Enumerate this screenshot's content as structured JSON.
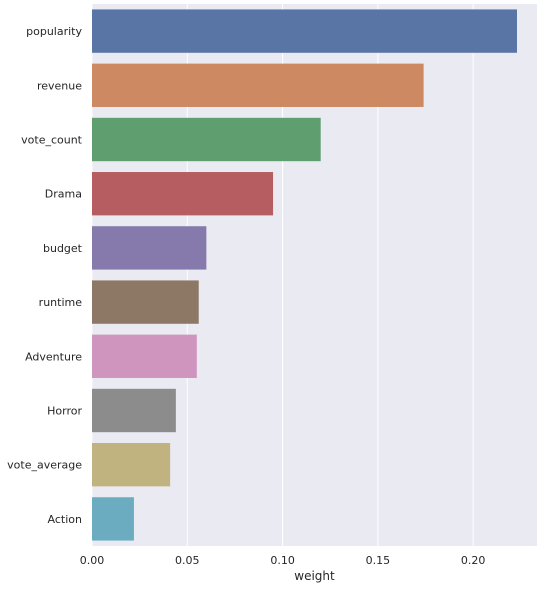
{
  "chart_data": {
    "type": "bar",
    "orientation": "horizontal",
    "categories": [
      "popularity",
      "revenue",
      "vote_count",
      "Drama",
      "budget",
      "runtime",
      "Adventure",
      "Horror",
      "vote_average",
      "Action"
    ],
    "values": [
      0.223,
      0.174,
      0.12,
      0.095,
      0.06,
      0.056,
      0.055,
      0.044,
      0.041,
      0.022
    ],
    "colors": [
      "#5875a6",
      "#cc8962",
      "#5f9e6e",
      "#b55d60",
      "#857aab",
      "#8d7866",
      "#d095bf",
      "#8c8c8c",
      "#c1b37f",
      "#6bacc0"
    ],
    "xlabel": "weight",
    "ylabel": "",
    "xlim": [
      0,
      0.2335
    ],
    "x_ticks": [
      "0.00",
      "0.05",
      "0.10",
      "0.15",
      "0.20"
    ],
    "x_tick_values": [
      0,
      0.05,
      0.1,
      0.15,
      0.2
    ],
    "grid": true,
    "background": "#eaeaf2",
    "grid_color": "#ffffff"
  }
}
